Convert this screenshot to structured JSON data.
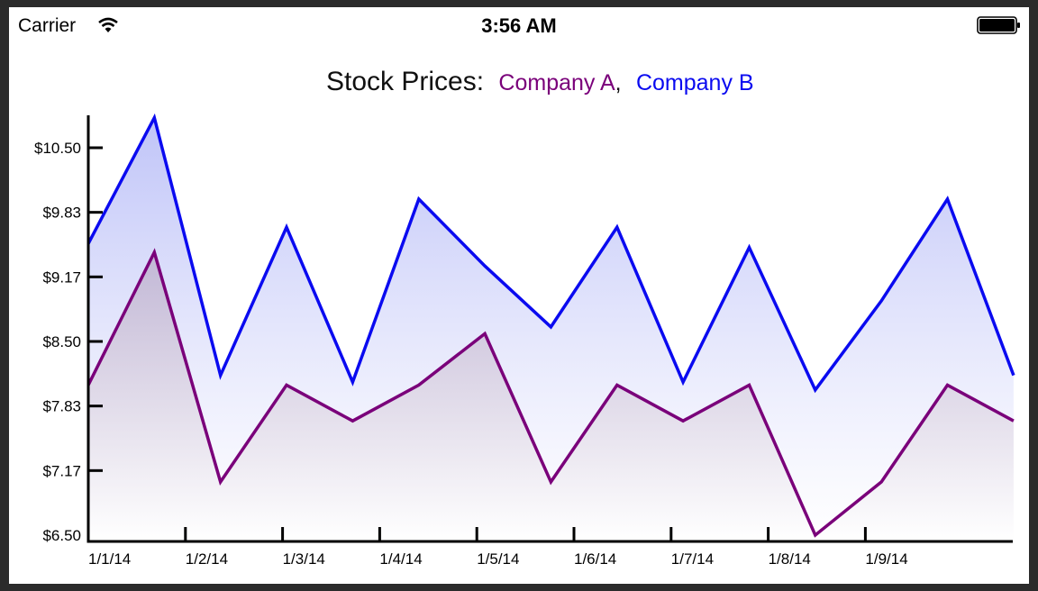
{
  "status_bar": {
    "carrier": "Carrier",
    "time": "3:56 AM",
    "wifi_icon": "wifi-icon",
    "battery_icon": "battery-icon"
  },
  "colors": {
    "company_a": "#7a007a",
    "company_b": "#0a0af0",
    "title": "#111111"
  },
  "chart_data": {
    "type": "area",
    "title": "Stock Prices:",
    "title_separator": ",",
    "xlabel": "",
    "ylabel": "",
    "x_tick_labels": [
      "1/1/14",
      "1/2/14",
      "1/3/14",
      "1/4/14",
      "1/5/14",
      "1/6/14",
      "1/7/14",
      "1/8/14",
      "1/9/14"
    ],
    "y_tick_labels": [
      "$6.50",
      "$7.17",
      "$7.83",
      "$8.50",
      "$9.17",
      "$9.83",
      "$10.50"
    ],
    "ylim": [
      6.5,
      10.9
    ],
    "grid": false,
    "legend": "in title",
    "series": [
      {
        "name": "Company A",
        "values": [
          8.05,
          9.42,
          7.05,
          8.05,
          7.68,
          8.05,
          8.58,
          7.05,
          8.05,
          7.68,
          8.05,
          6.5,
          7.05,
          8.05,
          7.68
        ]
      },
      {
        "name": "Company B",
        "values": [
          9.51,
          10.81,
          8.15,
          9.68,
          8.08,
          9.97,
          9.28,
          8.65,
          9.68,
          8.08,
          9.47,
          8.0,
          8.92,
          9.97,
          8.15
        ]
      }
    ]
  }
}
